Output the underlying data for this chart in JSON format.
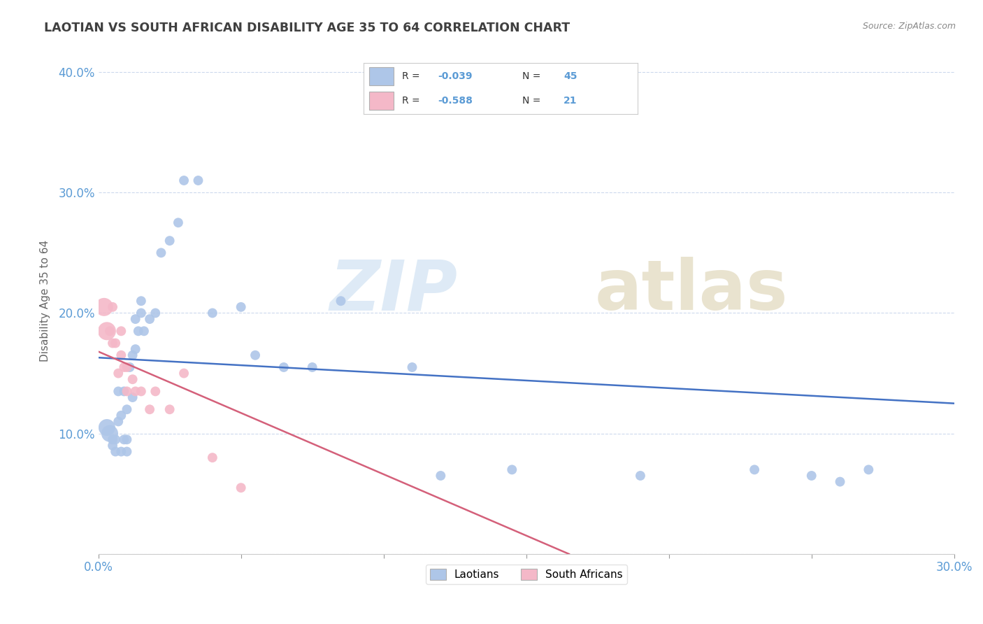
{
  "title": "LAOTIAN VS SOUTH AFRICAN DISABILITY AGE 35 TO 64 CORRELATION CHART",
  "source": "Source: ZipAtlas.com",
  "ylabel": "Disability Age 35 to 64",
  "xlim": [
    0.0,
    0.3
  ],
  "ylim": [
    0.0,
    0.42
  ],
  "blue_color": "#aec6e8",
  "pink_color": "#f4b8c8",
  "blue_line_color": "#4472c4",
  "pink_line_color": "#d4607a",
  "title_color": "#404040",
  "axis_color": "#5b9bd5",
  "laotian_x": [
    0.003,
    0.004,
    0.005,
    0.005,
    0.006,
    0.006,
    0.007,
    0.007,
    0.008,
    0.008,
    0.009,
    0.009,
    0.01,
    0.01,
    0.01,
    0.011,
    0.012,
    0.012,
    0.013,
    0.013,
    0.014,
    0.015,
    0.015,
    0.016,
    0.018,
    0.02,
    0.022,
    0.025,
    0.028,
    0.03,
    0.035,
    0.04,
    0.05,
    0.055,
    0.065,
    0.075,
    0.085,
    0.11,
    0.12,
    0.145,
    0.19,
    0.23,
    0.25,
    0.26,
    0.27
  ],
  "laotian_y": [
    0.105,
    0.1,
    0.09,
    0.095,
    0.085,
    0.095,
    0.11,
    0.135,
    0.085,
    0.115,
    0.095,
    0.135,
    0.085,
    0.095,
    0.12,
    0.155,
    0.13,
    0.165,
    0.17,
    0.195,
    0.185,
    0.2,
    0.21,
    0.185,
    0.195,
    0.2,
    0.25,
    0.26,
    0.275,
    0.31,
    0.31,
    0.2,
    0.205,
    0.165,
    0.155,
    0.155,
    0.21,
    0.155,
    0.065,
    0.07,
    0.065,
    0.07,
    0.065,
    0.06,
    0.07
  ],
  "sa_x": [
    0.002,
    0.003,
    0.004,
    0.005,
    0.005,
    0.006,
    0.007,
    0.008,
    0.008,
    0.009,
    0.01,
    0.01,
    0.012,
    0.013,
    0.015,
    0.018,
    0.02,
    0.025,
    0.03,
    0.04,
    0.05
  ],
  "sa_y": [
    0.205,
    0.185,
    0.185,
    0.175,
    0.205,
    0.175,
    0.15,
    0.165,
    0.185,
    0.155,
    0.135,
    0.155,
    0.145,
    0.135,
    0.135,
    0.12,
    0.135,
    0.12,
    0.15,
    0.08,
    0.055
  ],
  "blue_trend_x": [
    0.0,
    0.3
  ],
  "blue_trend_y": [
    0.163,
    0.125
  ],
  "pink_trend_x": [
    0.0,
    0.165
  ],
  "pink_trend_y": [
    0.168,
    0.0
  ],
  "marker_size": 100
}
